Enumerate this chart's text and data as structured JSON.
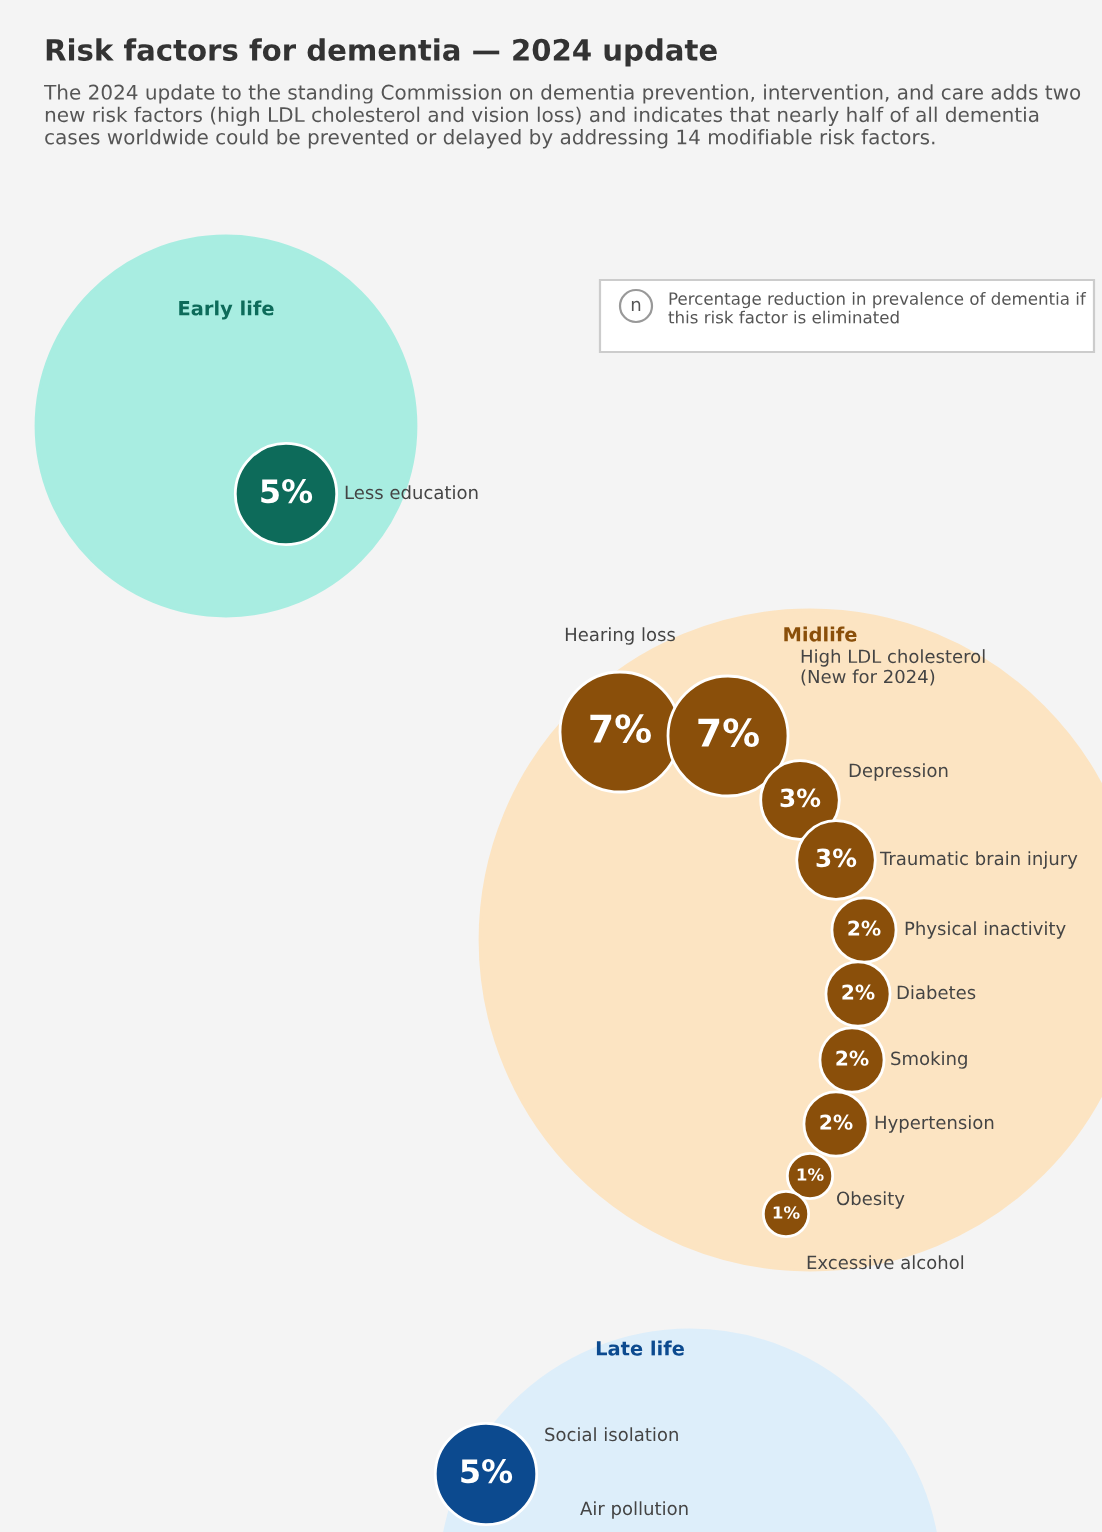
{
  "chart_data": {
    "type": "other",
    "title": "Risk factors for dementia — 2024 update",
    "subtitle": "The 2024 update to the standing Commission on dementia prevention, intervention, and care adds two new risk factors (high LDL cholesterol and vision loss) and indicates that nearly half of all dementia cases worldwide could be prevented or delayed by addressing 14 modifiable risk factors.",
    "categories": [
      "Less education",
      "Hearing loss",
      "High LDL cholesterol\n(New for 2024)",
      "Depression",
      "Traumatic brain injury",
      "Physical inactivity",
      "Diabetes",
      "Smoking",
      "Hypertension",
      "Obesity",
      "Excessive alcohol",
      "Social isolation",
      "Air pollution"
    ],
    "series": [
      {
        "name": "Early life",
        "color": "#0d6b5a",
        "values": [
          5,
          null,
          null,
          null,
          null,
          null,
          null,
          null,
          null,
          null,
          null,
          null,
          null
        ],
        "value_labels": [
          "5%",
          null,
          null,
          null,
          null,
          null,
          null,
          null,
          null,
          null,
          null,
          null,
          null
        ]
      },
      {
        "name": "Midlife",
        "color": "#8a4f0a",
        "values": [
          null,
          7,
          7,
          3,
          3,
          2,
          2,
          2,
          2,
          1,
          1,
          null,
          null
        ],
        "value_labels": [
          null,
          "7%",
          "7%",
          "3%",
          "3%",
          "2%",
          "2%",
          "2%",
          "2%",
          "1%",
          "1%",
          null,
          null
        ]
      },
      {
        "name": "Late life",
        "color": "#0c4a8f",
        "values": [
          null,
          null,
          null,
          null,
          null,
          null,
          null,
          null,
          null,
          null,
          null,
          5,
          null
        ],
        "value_labels": [
          null,
          null,
          null,
          null,
          null,
          null,
          null,
          null,
          null,
          null,
          null,
          "5%",
          null
        ]
      }
    ],
    "annotations": [
      "n",
      "Percentage reduction in prevalence of dementia if this risk factor is eliminated"
    ]
  }
}
